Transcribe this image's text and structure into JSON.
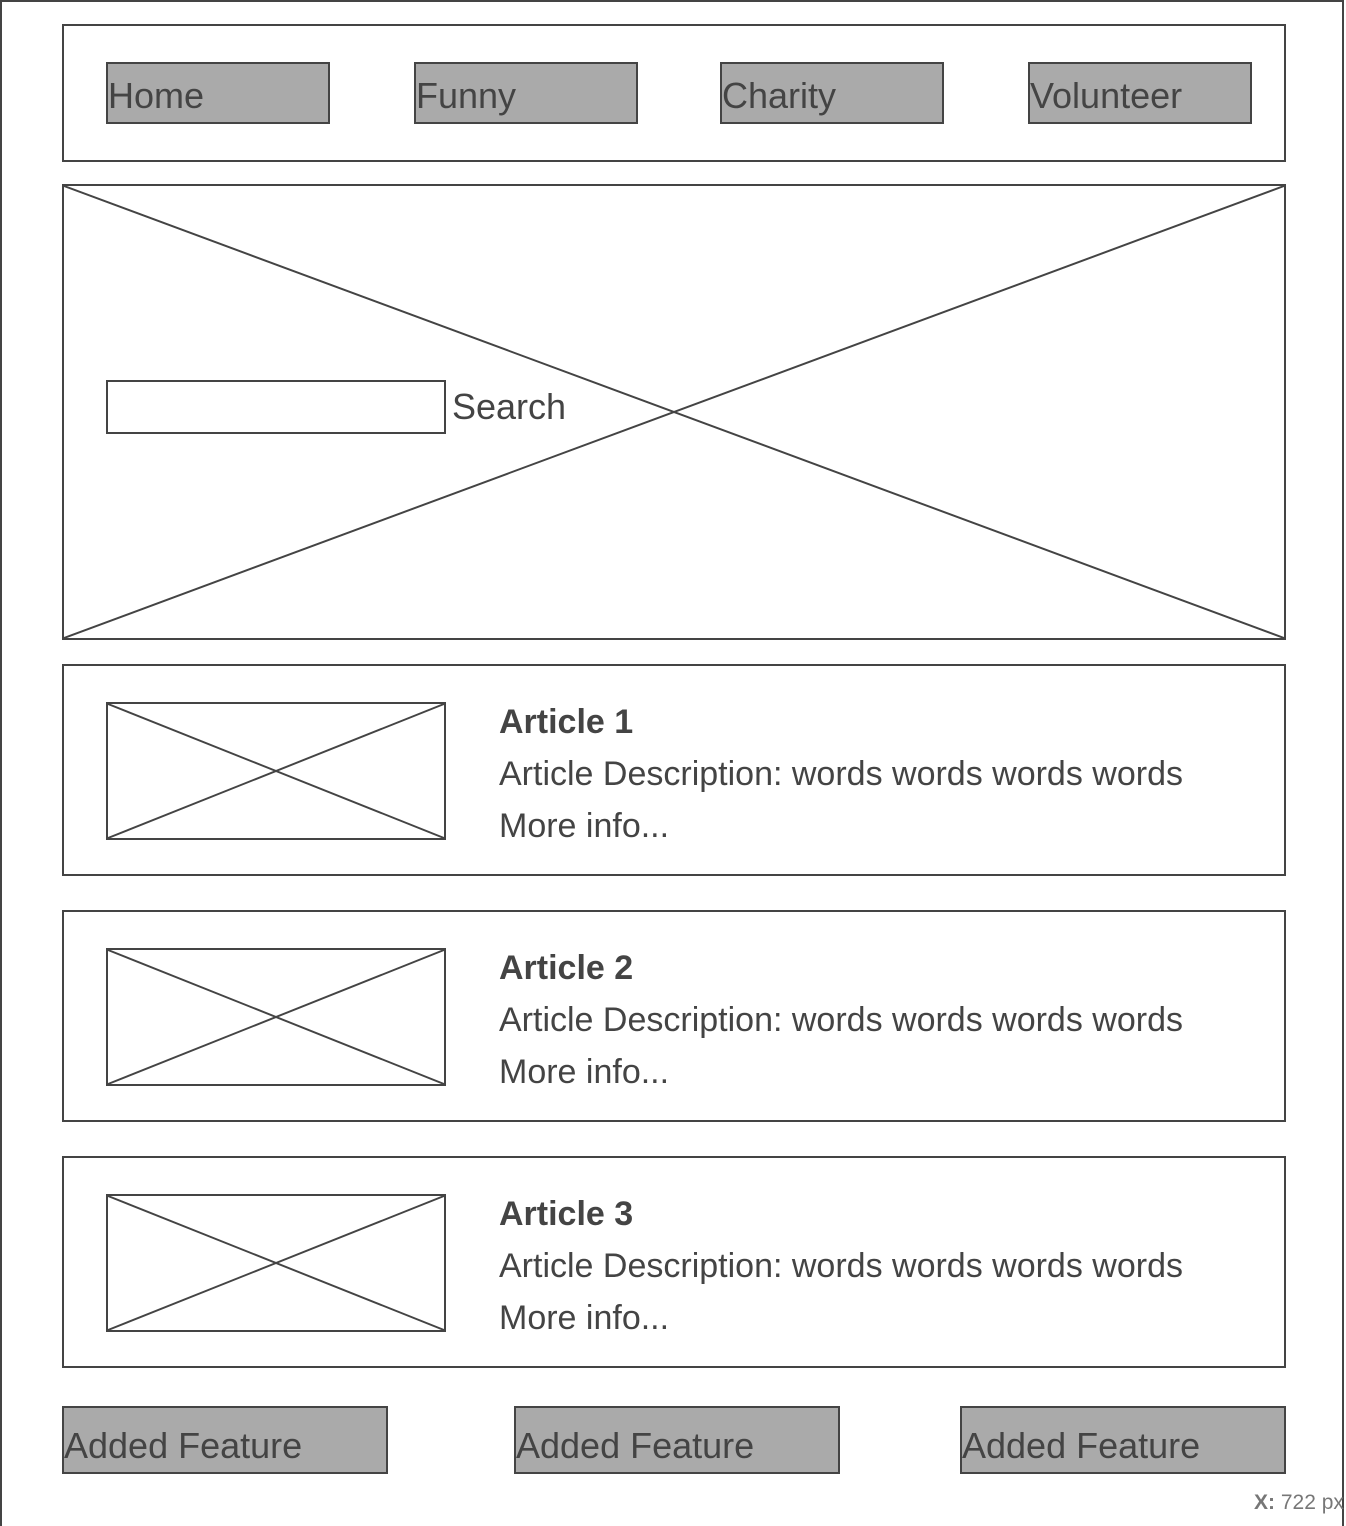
{
  "nav": {
    "items": [
      {
        "label": "Home"
      },
      {
        "label": "Funny"
      },
      {
        "label": "Charity"
      },
      {
        "label": "Volunteer"
      }
    ]
  },
  "hero": {
    "search": {
      "value": "",
      "placeholder": "",
      "button_label": "Search"
    }
  },
  "articles": [
    {
      "title": "Article 1",
      "description": "Article Description: words words words words",
      "more": "More info..."
    },
    {
      "title": "Article 2",
      "description": "Article Description: words words words words",
      "more": "More info..."
    },
    {
      "title": "Article 3",
      "description": "Article Description: words words words words",
      "more": "More info..."
    }
  ],
  "features": [
    {
      "label": "Added Feature"
    },
    {
      "label": "Added Feature"
    },
    {
      "label": "Added Feature"
    }
  ],
  "status": {
    "coord_label": "X:",
    "coord_value": "722 px"
  },
  "colors": {
    "stroke": "#444444",
    "button_fill": "#aaaaaa",
    "background": "#ffffff"
  }
}
